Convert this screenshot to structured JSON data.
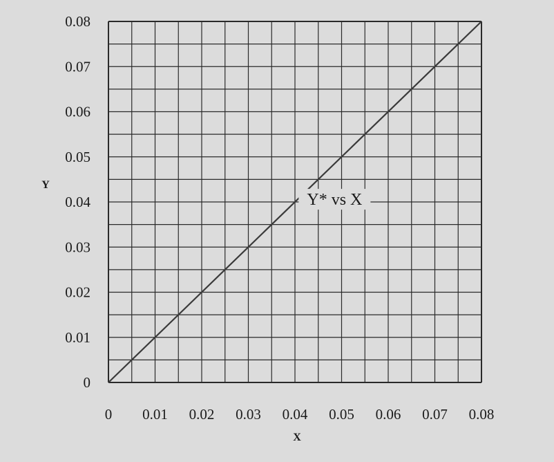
{
  "chart_data": {
    "type": "line",
    "title": "",
    "xlabel": "X",
    "ylabel": "Y",
    "xlim": [
      0,
      0.08
    ],
    "ylim": [
      0,
      0.08
    ],
    "grid": true,
    "x_ticks": [
      "0",
      "0.01",
      "0.02",
      "0.03",
      "0.04",
      "0.05",
      "0.06",
      "0.07",
      "0.08"
    ],
    "y_ticks": [
      "0",
      "0.01",
      "0.02",
      "0.03",
      "0.04",
      "0.05",
      "0.06",
      "0.07",
      "0.08"
    ],
    "grid_step": 0.005,
    "series": [
      {
        "name": "Y* vs X",
        "x": [
          0,
          0.08
        ],
        "y": [
          0,
          0.08
        ]
      }
    ],
    "annotation": {
      "text": "Y* vs X",
      "x": 0.0485,
      "y": 0.0406
    },
    "colors": {
      "line": "#3a3a3a",
      "grid": "#2a2a2a",
      "background": "#dcdcdc"
    }
  }
}
